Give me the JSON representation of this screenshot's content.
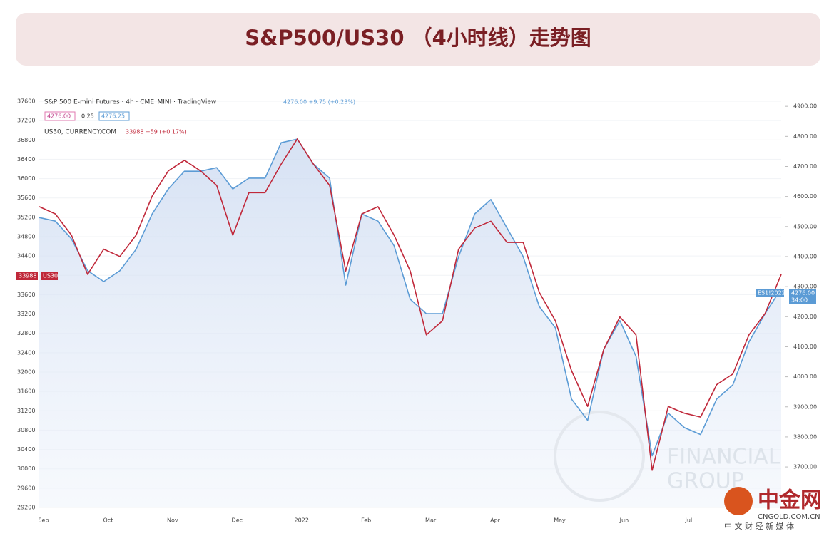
{
  "header": {
    "title": "S&P500/US30 （4小时线）走势图"
  },
  "chart_data": {
    "type": "line",
    "categories": [
      "Sep",
      null,
      null,
      null,
      "Oct",
      null,
      null,
      null,
      "Nov",
      null,
      null,
      null,
      "Dec",
      null,
      null,
      null,
      "2022",
      null,
      null,
      null,
      "Feb",
      null,
      null,
      null,
      "Mar",
      null,
      null,
      null,
      "Apr",
      null,
      null,
      null,
      "May",
      null,
      null,
      null,
      "Jun",
      null,
      null,
      null,
      "Jul",
      null,
      null,
      null,
      null,
      null,
      null
    ],
    "series": [
      {
        "name": "S&P 500 E-mini Futures · 4h · CME_MINI · TradingView",
        "color": "#5b9bd5",
        "axis": "y2",
        "values": [
          4530,
          4518,
          4459,
          4353,
          4317,
          4353,
          4424,
          4542,
          4625,
          4684,
          4684,
          4696,
          4625,
          4661,
          4661,
          4779,
          4791,
          4708,
          4661,
          4305,
          4542,
          4518,
          4436,
          4258,
          4210,
          4210,
          4400,
          4542,
          4590,
          4495,
          4400,
          4234,
          4163,
          3926,
          3855,
          4092,
          4187,
          4068,
          3737,
          3879,
          3831,
          3808,
          3926,
          3973,
          4116,
          4210,
          4293
        ]
      },
      {
        "name": "US30, CURRENCY.COM",
        "color": "#c0283a",
        "axis": "y",
        "values": [
          35420,
          35270,
          34830,
          34020,
          34540,
          34390,
          34830,
          35640,
          36160,
          36380,
          36160,
          35860,
          34830,
          35710,
          35710,
          36300,
          36820,
          36300,
          35860,
          34090,
          35270,
          35420,
          34830,
          34090,
          32770,
          33060,
          34540,
          34980,
          35120,
          34680,
          34680,
          33650,
          33060,
          32030,
          31290,
          32470,
          33140,
          32770,
          29970,
          31290,
          31150,
          31070,
          31740,
          31960,
          32770,
          33210,
          34020
        ]
      }
    ],
    "ylim": [
      29200,
      37600
    ],
    "yticks": [
      29200,
      29600,
      30000,
      30400,
      30800,
      31200,
      31600,
      32000,
      32400,
      32800,
      33200,
      33600,
      34000,
      34400,
      34800,
      35200,
      35600,
      36000,
      36400,
      36800,
      37200,
      37600
    ],
    "y2lim": [
      3565,
      4917
    ],
    "y2ticks": [
      {
        "value": 3700,
        "label": "3700.00"
      },
      {
        "value": 3800,
        "label": "3800.00"
      },
      {
        "value": 3900,
        "label": "3900.00"
      },
      {
        "value": 4000,
        "label": "4000.00"
      },
      {
        "value": 4100,
        "label": "4100.00"
      },
      {
        "value": 4200,
        "label": "4200.00"
      },
      {
        "value": 4300,
        "label": "4300.00"
      },
      {
        "value": 4400,
        "label": "4400.00"
      },
      {
        "value": 4500,
        "label": "4500.00"
      },
      {
        "value": 4600,
        "label": "4600.00"
      },
      {
        "value": 4700,
        "label": "4700.00"
      },
      {
        "value": 4800,
        "label": "4800.00"
      },
      {
        "value": 4900,
        "label": "4900.00"
      }
    ],
    "grid": true,
    "annotations": [
      "4276.00 +9.75 (+0.23%)",
      "4276.00",
      "0.25",
      "4276.25",
      "33988 +59 (+0.17%)",
      "33988",
      "US30",
      "ES1!2022",
      "4276.00",
      "34:00"
    ]
  },
  "branding": {
    "watermark": [
      "FINANCIAL",
      "GROUP"
    ],
    "logo": "中金网",
    "site": "CNGOLD.COM.CN",
    "tagline": "中 文 财 经 新 媒 体"
  }
}
